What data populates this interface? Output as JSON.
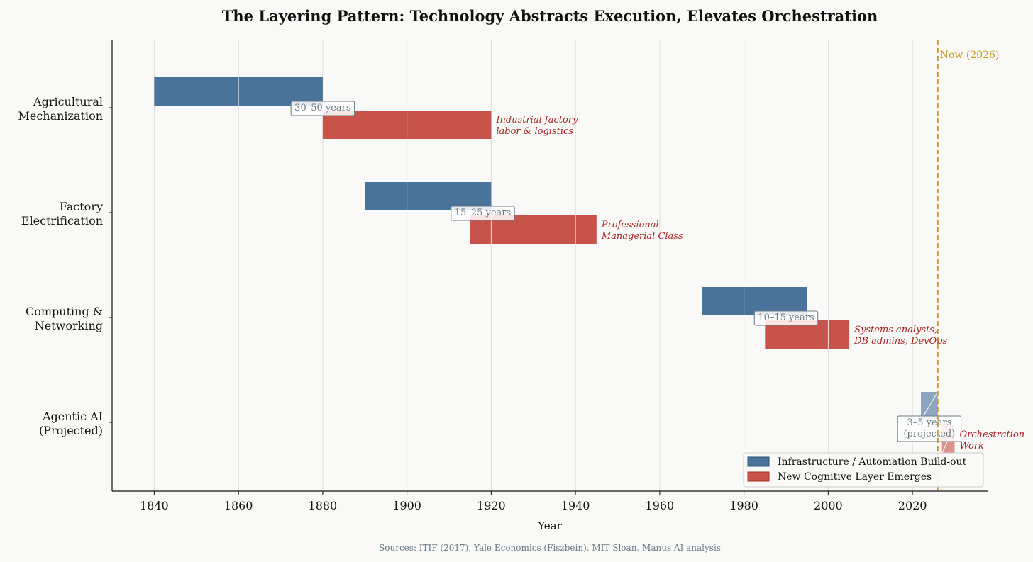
{
  "chart_data": {
    "type": "bar",
    "subtype": "horizontal-range-timeline",
    "title": "The Layering Pattern: Technology Abstracts Execution, Elevates Orchestration",
    "xlabel": "Year",
    "ylabel": "",
    "xlim": [
      1830,
      2038
    ],
    "xticks": [
      1840,
      1860,
      1880,
      1900,
      1920,
      1940,
      1960,
      1980,
      2000,
      2020
    ],
    "grid": true,
    "legend_position": "bottom-right",
    "categories": [
      {
        "label": [
          "Agricultural",
          "Mechanization"
        ]
      },
      {
        "label": [
          "Factory",
          "Electrification"
        ]
      },
      {
        "label": [
          "Computing &",
          "Networking"
        ]
      },
      {
        "label": [
          "Agentic AI",
          "(Projected)"
        ]
      }
    ],
    "series": [
      {
        "name": "Infrastructure / Automation Build-out",
        "color": "#4a7399",
        "ranges": [
          {
            "category": 0,
            "start": 1840,
            "end": 1880,
            "projected": false
          },
          {
            "category": 1,
            "start": 1890,
            "end": 1920,
            "projected": false
          },
          {
            "category": 2,
            "start": 1970,
            "end": 1995,
            "projected": false
          },
          {
            "category": 3,
            "start": 2022,
            "end": 2026,
            "projected": true
          }
        ]
      },
      {
        "name": "New Cognitive Layer Emerges",
        "color": "#c8534a",
        "ranges": [
          {
            "category": 0,
            "start": 1880,
            "end": 1920,
            "projected": false
          },
          {
            "category": 1,
            "start": 1915,
            "end": 1945,
            "projected": false
          },
          {
            "category": 2,
            "start": 1985,
            "end": 2005,
            "projected": false
          },
          {
            "category": 3,
            "start": 2027,
            "end": 2030,
            "projected": true
          }
        ]
      }
    ],
    "duration_labels": [
      {
        "category": 0,
        "x": 1880,
        "lines": [
          "30–50 years"
        ]
      },
      {
        "category": 1,
        "x": 1918,
        "lines": [
          "15–25 years"
        ]
      },
      {
        "category": 2,
        "x": 1990,
        "lines": [
          "10–15 years"
        ]
      },
      {
        "category": 3,
        "x": 2024,
        "lines": [
          "3–5 years",
          "(projected)"
        ]
      }
    ],
    "annotations": [
      {
        "category": 0,
        "x": 1920,
        "lines": [
          "Industrial factory",
          "labor & logistics"
        ]
      },
      {
        "category": 1,
        "x": 1945,
        "lines": [
          "Professional-",
          "Managerial Class"
        ]
      },
      {
        "category": 2,
        "x": 2005,
        "lines": [
          "Systems analysts,",
          "DB admins, DevOps"
        ]
      },
      {
        "category": 3,
        "x": 2030,
        "lines": [
          "Orchestration",
          "Work"
        ]
      }
    ],
    "reference_line": {
      "x": 2026,
      "label": "Now (2026)",
      "color": "#c8961b"
    },
    "source": "Sources: ITIF (2017), Yale Economics (Fiszbein), MIT Sloan, Manus AI analysis"
  }
}
